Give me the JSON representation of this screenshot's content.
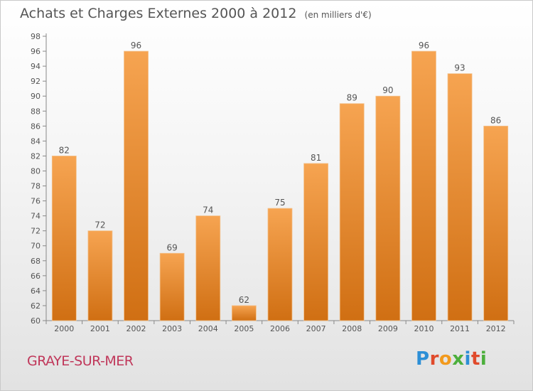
{
  "title": "Achats et Charges Externes 2000 à 2012",
  "unit_note": "(en milliers d'€)",
  "commune": "GRAYE-SUR-MER",
  "logo": {
    "text": "Proxiti",
    "letter_colors": [
      "#2d8fd6",
      "#e04a2b",
      "#f29a1d",
      "#4caf3c",
      "#2d8fd6",
      "#e04a2b",
      "#4caf3c"
    ]
  },
  "colors": {
    "bar_top": "#f6a451",
    "bar_bottom": "#d06f13",
    "axis": "#888888",
    "text": "#555555"
  },
  "chart_data": {
    "type": "bar",
    "categories": [
      "2000",
      "2001",
      "2002",
      "2003",
      "2004",
      "2005",
      "2006",
      "2007",
      "2008",
      "2009",
      "2010",
      "2011",
      "2012"
    ],
    "values": [
      82,
      72,
      96,
      69,
      74,
      62,
      75,
      81,
      89,
      90,
      96,
      93,
      86
    ],
    "ylim": [
      60,
      98
    ],
    "yticks": [
      60,
      62,
      64,
      66,
      68,
      70,
      72,
      74,
      76,
      78,
      80,
      82,
      84,
      86,
      88,
      90,
      92,
      94,
      96,
      98
    ],
    "xlabel": "",
    "ylabel": "",
    "grid": false,
    "data_labels": true
  }
}
